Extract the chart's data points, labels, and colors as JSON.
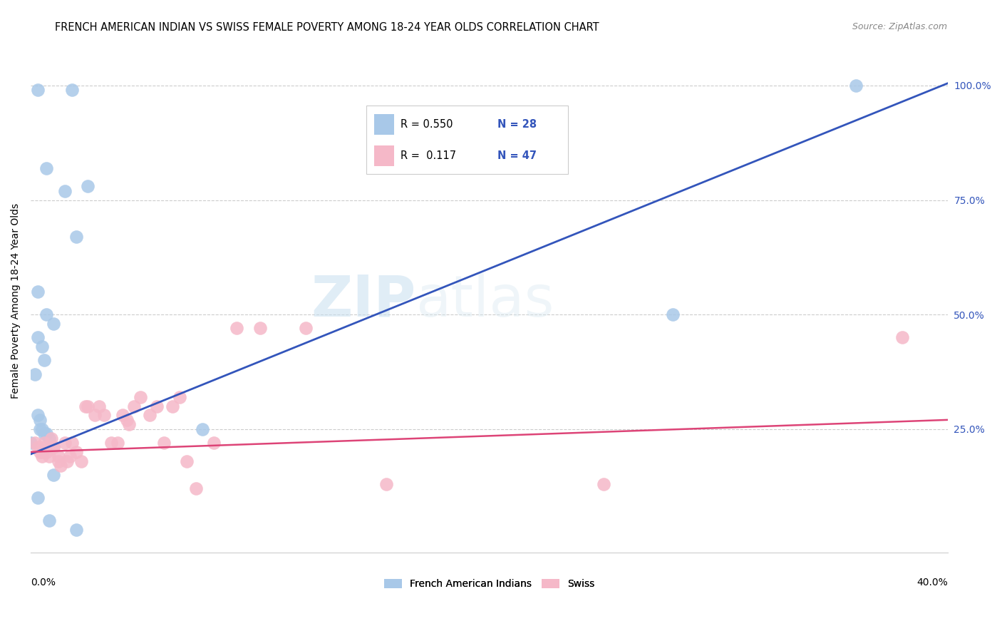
{
  "title": "FRENCH AMERICAN INDIAN VS SWISS FEMALE POVERTY AMONG 18-24 YEAR OLDS CORRELATION CHART",
  "source": "Source: ZipAtlas.com",
  "ylabel": "Female Poverty Among 18-24 Year Olds",
  "xlim": [
    0.0,
    0.4
  ],
  "ylim": [
    -0.02,
    1.08
  ],
  "yticks": [
    0.25,
    0.5,
    0.75,
    1.0
  ],
  "ytick_labels": [
    "25.0%",
    "50.0%",
    "75.0%",
    "100.0%"
  ],
  "background_color": "#ffffff",
  "blue_color": "#a8c8e8",
  "pink_color": "#f5b8c8",
  "line_blue": "#3355bb",
  "line_pink": "#dd4477",
  "grid_color": "#cccccc",
  "blue_line_x": [
    0.0,
    0.4
  ],
  "blue_line_y": [
    0.195,
    1.005
  ],
  "pink_line_x": [
    0.0,
    0.4
  ],
  "pink_line_y": [
    0.2,
    0.27
  ],
  "blue_x": [
    0.0,
    0.003,
    0.018,
    0.025,
    0.007,
    0.015,
    0.02,
    0.003,
    0.007,
    0.01,
    0.003,
    0.005,
    0.006,
    0.002,
    0.003,
    0.004,
    0.004,
    0.005,
    0.006,
    0.007,
    0.008,
    0.01,
    0.075,
    0.28,
    0.36,
    0.003,
    0.008,
    0.02
  ],
  "blue_y": [
    0.22,
    0.99,
    0.99,
    0.78,
    0.82,
    0.77,
    0.67,
    0.55,
    0.5,
    0.48,
    0.45,
    0.43,
    0.4,
    0.37,
    0.28,
    0.27,
    0.25,
    0.25,
    0.24,
    0.24,
    0.23,
    0.15,
    0.25,
    0.5,
    1.0,
    0.1,
    0.05,
    0.03
  ],
  "pink_x": [
    0.002,
    0.003,
    0.004,
    0.005,
    0.005,
    0.006,
    0.006,
    0.007,
    0.008,
    0.009,
    0.01,
    0.01,
    0.012,
    0.012,
    0.013,
    0.015,
    0.016,
    0.017,
    0.018,
    0.02,
    0.022,
    0.024,
    0.025,
    0.028,
    0.03,
    0.032,
    0.035,
    0.038,
    0.04,
    0.042,
    0.043,
    0.045,
    0.048,
    0.052,
    0.055,
    0.058,
    0.062,
    0.065,
    0.068,
    0.072,
    0.08,
    0.09,
    0.1,
    0.12,
    0.155,
    0.25,
    0.38
  ],
  "pink_y": [
    0.22,
    0.21,
    0.2,
    0.2,
    0.19,
    0.22,
    0.21,
    0.2,
    0.19,
    0.23,
    0.21,
    0.21,
    0.19,
    0.18,
    0.17,
    0.22,
    0.18,
    0.19,
    0.22,
    0.2,
    0.18,
    0.3,
    0.3,
    0.28,
    0.3,
    0.28,
    0.22,
    0.22,
    0.28,
    0.27,
    0.26,
    0.3,
    0.32,
    0.28,
    0.3,
    0.22,
    0.3,
    0.32,
    0.18,
    0.12,
    0.22,
    0.47,
    0.47,
    0.47,
    0.13,
    0.13,
    0.45
  ],
  "watermark_zip": "ZIP",
  "watermark_atlas": "atlas",
  "legend_blue_r": "R = 0.550",
  "legend_blue_n": "N = 28",
  "legend_pink_r": "R =  0.117",
  "legend_pink_n": "N = 47"
}
